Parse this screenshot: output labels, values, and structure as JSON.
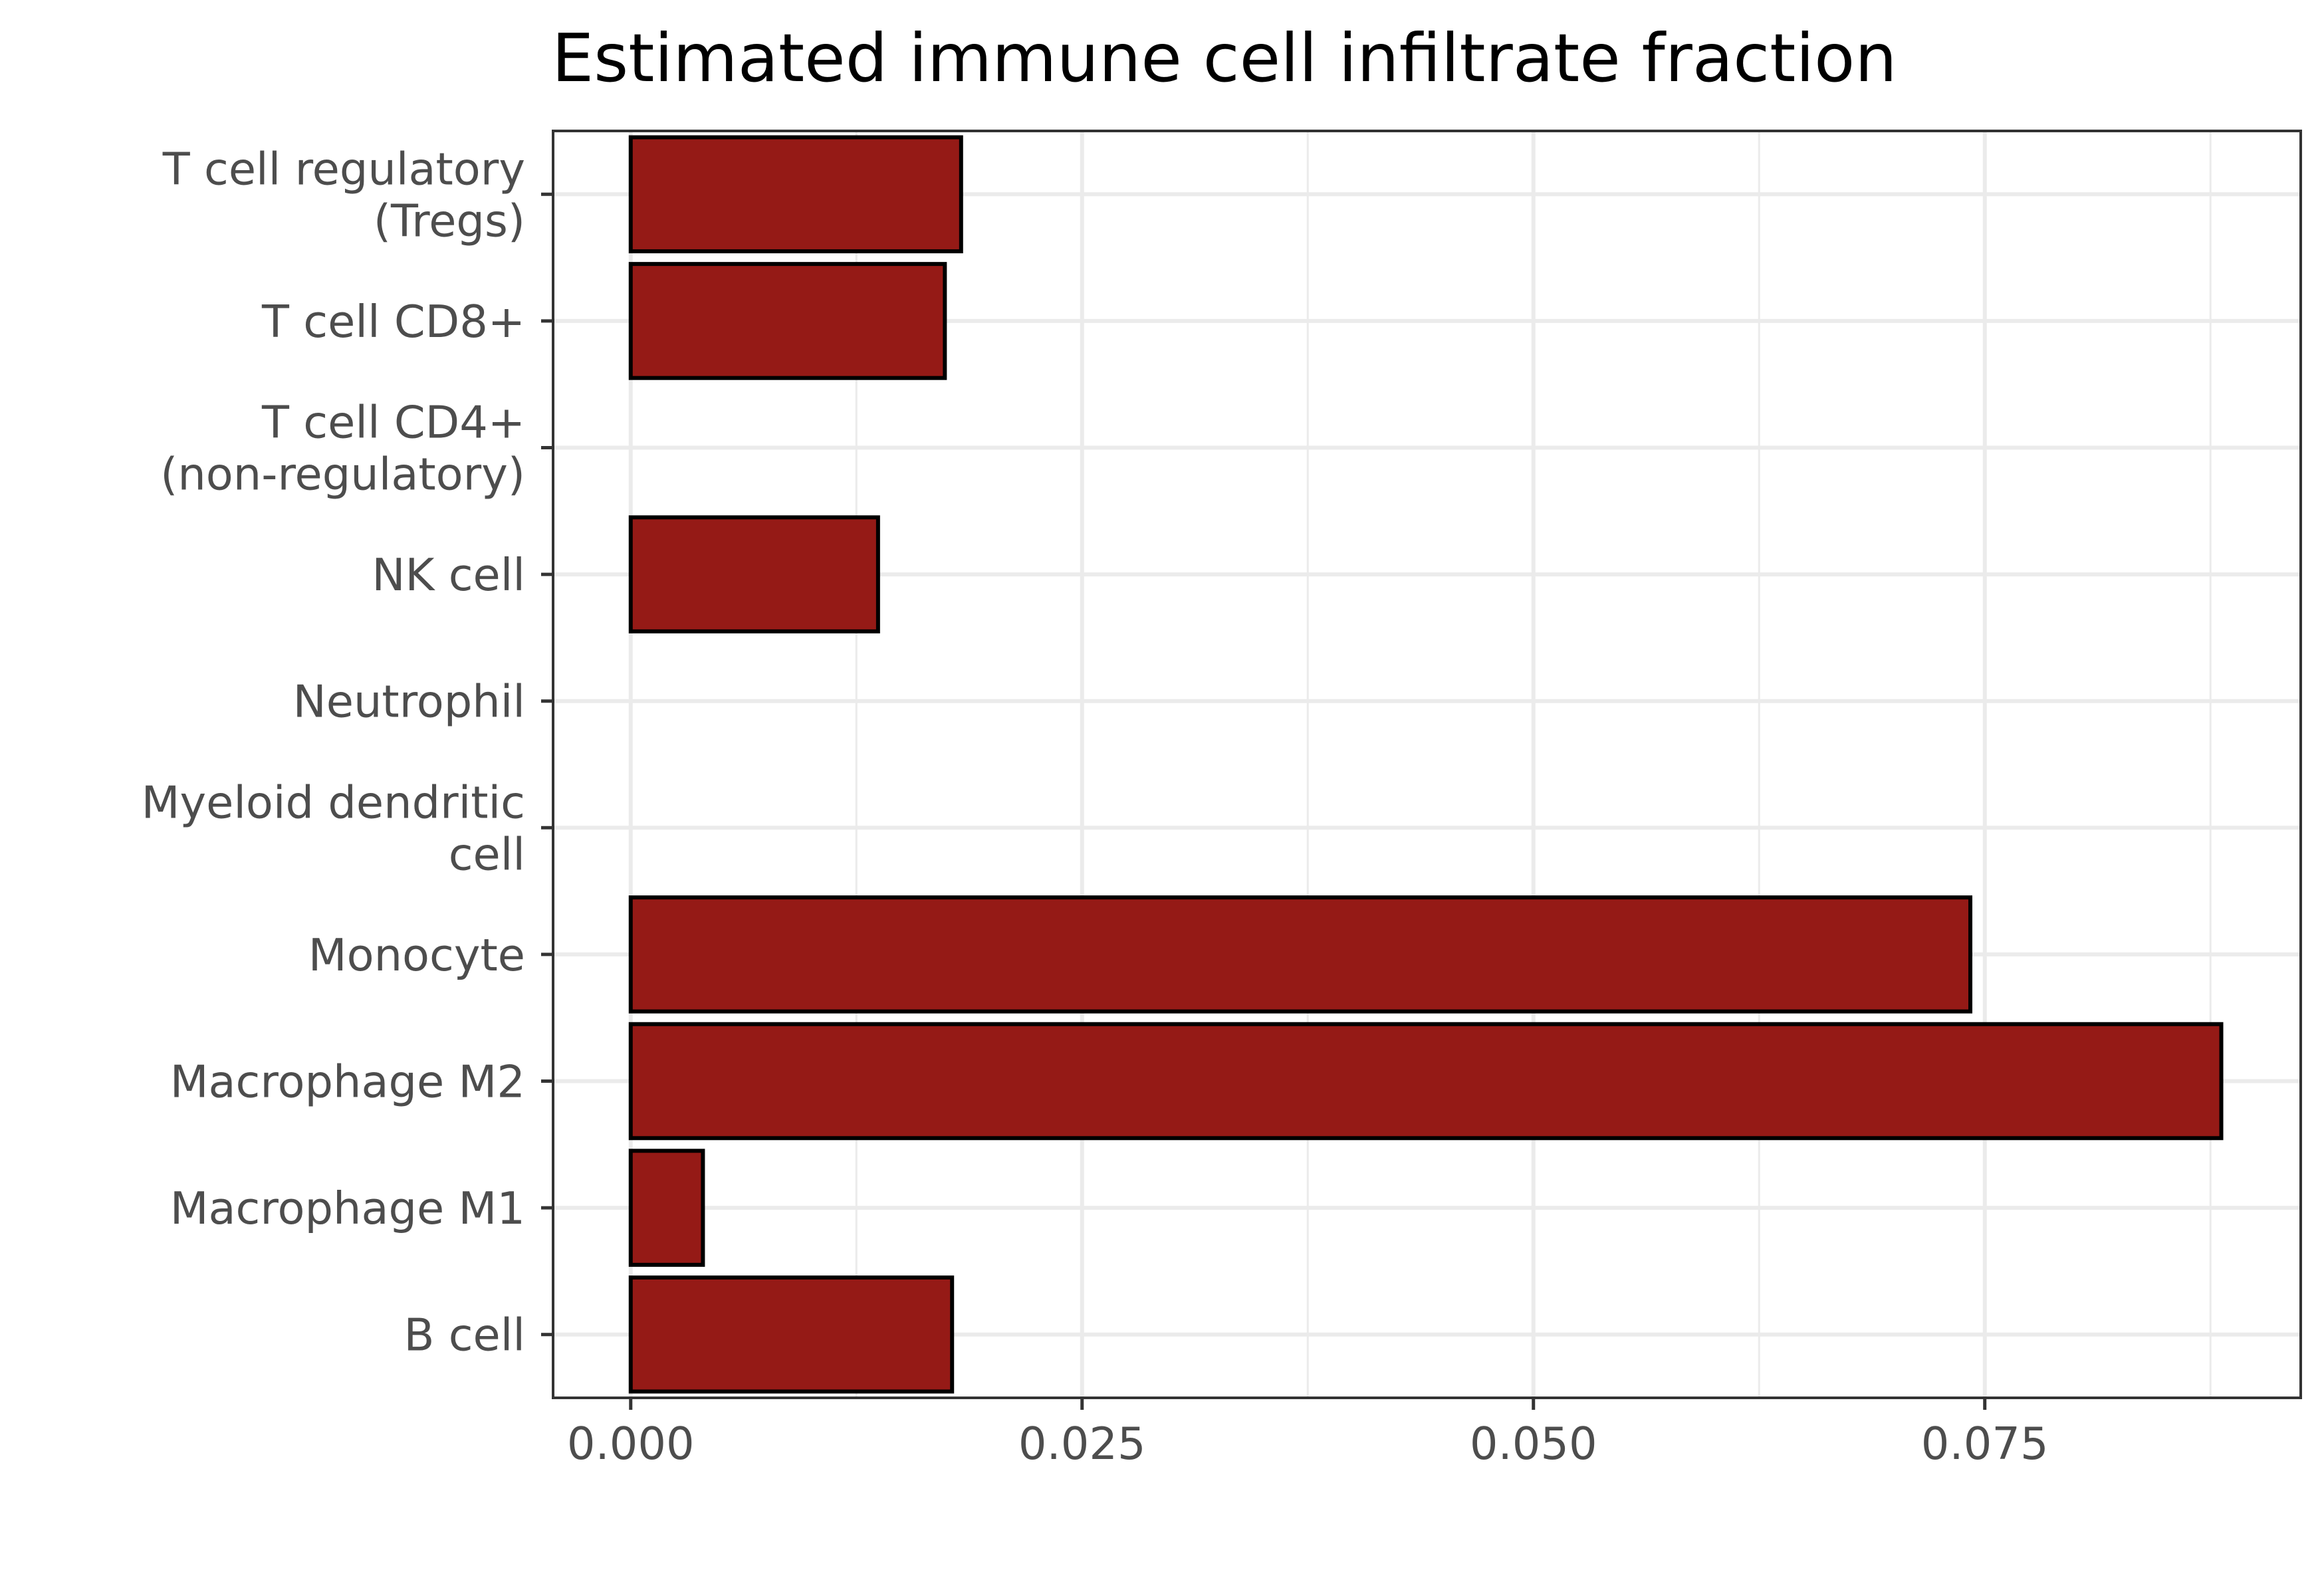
{
  "chart_data": {
    "type": "bar",
    "orientation": "horizontal",
    "title": "Estimated immune cell infiltrate fraction",
    "xlabel": "",
    "ylabel": "",
    "xlim": [
      -0.0043,
      0.0925
    ],
    "x_ticks": [
      "0.000",
      "0.025",
      "0.050",
      "0.075"
    ],
    "x_tick_values": [
      0,
      0.025,
      0.05,
      0.075
    ],
    "x_minor_values": [
      0.0125,
      0.0375,
      0.0625,
      0.0875
    ],
    "grid": true,
    "bar_color": "#951a16",
    "bar_edge_color": "#000000",
    "categories": [
      [
        "T cell regulatory",
        "(Tregs)"
      ],
      [
        "T cell CD8+"
      ],
      [
        "T cell CD4+",
        "(non-regulatory)"
      ],
      [
        "NK cell"
      ],
      [
        "Neutrophil"
      ],
      [
        "Myeloid dendritic",
        "cell"
      ],
      [
        "Monocyte"
      ],
      [
        "Macrophage M2"
      ],
      [
        "Macrophage M1"
      ],
      [
        "B cell"
      ]
    ],
    "values": [
      0.0183,
      0.0174,
      0.0,
      0.0137,
      0.0,
      0.0,
      0.0742,
      0.0881,
      0.004,
      0.0178
    ]
  }
}
